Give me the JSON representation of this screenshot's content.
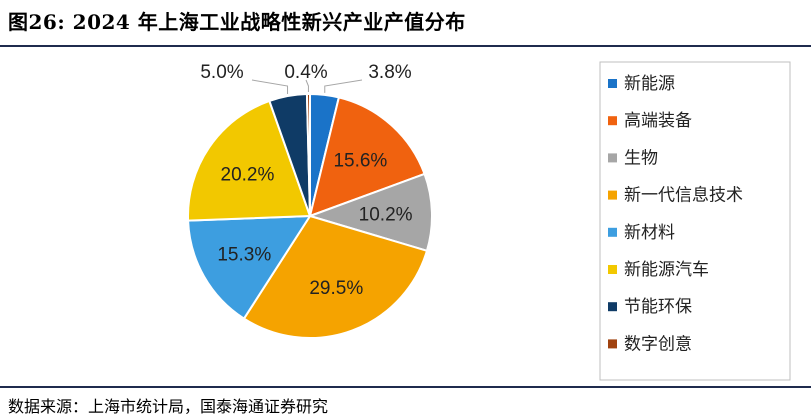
{
  "header": {
    "figure_title": "图26:  2024 年上海工业战略性新兴产业产值分布"
  },
  "footer": {
    "source": "数据来源：上海市统计局，国泰海通证券研究"
  },
  "chart_data": {
    "type": "pie",
    "title": "",
    "start_angle_deg": 0,
    "direction": "clockwise",
    "legend_position": "right",
    "slices": [
      {
        "name": "新能源",
        "value": 3.8,
        "label": "3.8%",
        "color": "#1a73c8",
        "label_placement": "outside"
      },
      {
        "name": "高端装备",
        "value": 15.6,
        "label": "15.6%",
        "color": "#f0620f",
        "label_placement": "inside"
      },
      {
        "name": "生物",
        "value": 10.2,
        "label": "10.2%",
        "color": "#a6a6a6",
        "label_placement": "inside"
      },
      {
        "name": "新一代信息技术",
        "value": 29.5,
        "label": "29.5%",
        "color": "#f5a300",
        "label_placement": "inside"
      },
      {
        "name": "新材料",
        "value": 15.3,
        "label": "15.3%",
        "color": "#3d9ee0",
        "label_placement": "inside"
      },
      {
        "name": "新能源汽车",
        "value": 20.2,
        "label": "20.2%",
        "color": "#f2c800",
        "label_placement": "inside"
      },
      {
        "name": "节能环保",
        "value": 5.0,
        "label": "5.0%",
        "color": "#0f3b66",
        "label_placement": "outside"
      },
      {
        "name": "数字创意",
        "value": 0.4,
        "label": "0.4%",
        "color": "#a0420f",
        "label_placement": "outside"
      }
    ]
  }
}
